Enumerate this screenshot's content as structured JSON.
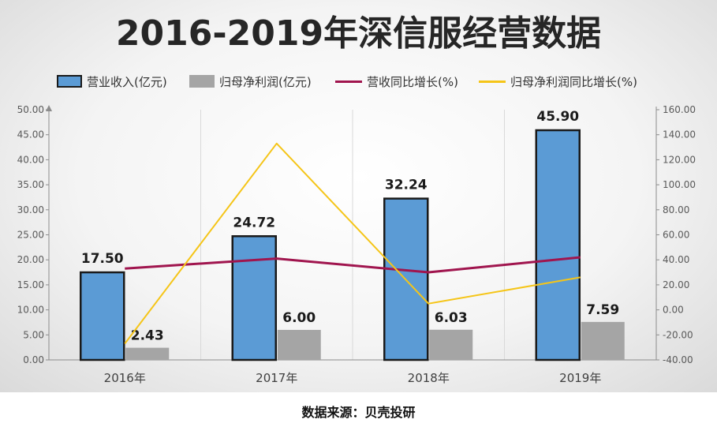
{
  "title": "2016-2019年深信服经营数据",
  "source": "数据来源：贝壳投研",
  "legend": {
    "revenue": "营业收入(亿元)",
    "profit": "归母净利润(亿元)",
    "rev_growth": "营收同比增长(%)",
    "profit_growth": "归母净利润同比增长(%)"
  },
  "colors": {
    "revenue": "#5b9bd5",
    "revenue_border": "#1a1a1a",
    "profit": "#a5a5a5",
    "rev_growth": "#a0154e",
    "profit_growth": "#f5c518"
  },
  "chart_data": {
    "type": "bar",
    "categories": [
      "2016年",
      "2017年",
      "2018年",
      "2019年"
    ],
    "series": [
      {
        "name": "营业收入(亿元)",
        "type": "bar",
        "axis": "left",
        "values": [
          17.5,
          24.72,
          32.24,
          45.9
        ],
        "labels": [
          "17.50",
          "24.72",
          "32.24",
          "45.90"
        ]
      },
      {
        "name": "归母净利润(亿元)",
        "type": "bar",
        "axis": "left",
        "values": [
          2.43,
          6.0,
          6.03,
          7.59
        ],
        "labels": [
          "2.43",
          "6.00",
          "6.03",
          "7.59"
        ]
      },
      {
        "name": "营收同比增长(%)",
        "type": "line",
        "axis": "right",
        "values": [
          33,
          41,
          30,
          42
        ]
      },
      {
        "name": "归母净利润同比增长(%)",
        "type": "line",
        "axis": "right",
        "values": [
          -27,
          133,
          5,
          26
        ]
      }
    ],
    "y_left": {
      "lim": [
        0,
        50
      ],
      "ticks": [
        "0.00",
        "5.00",
        "10.00",
        "15.00",
        "20.00",
        "25.00",
        "30.00",
        "35.00",
        "40.00",
        "45.00",
        "50.00"
      ]
    },
    "y_right": {
      "lim": [
        -40,
        160
      ],
      "ticks": [
        "-40.00",
        "-20.00",
        "0.00",
        "20.00",
        "40.00",
        "60.00",
        "80.00",
        "100.00",
        "120.00",
        "140.00",
        "160.00"
      ]
    },
    "grid": "vertical",
    "legend_position": "top"
  }
}
